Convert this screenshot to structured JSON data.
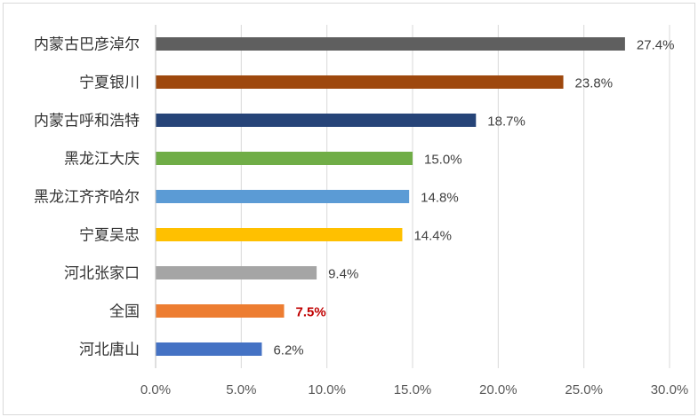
{
  "chart_data": {
    "type": "bar",
    "orientation": "horizontal",
    "categories": [
      "内蒙古巴彦淖尔",
      "宁夏银川",
      "内蒙古呼和浩特",
      "黑龙江大庆",
      "黑龙江齐齐哈尔",
      "宁夏吴忠",
      "河北张家口",
      "全国",
      "河北唐山"
    ],
    "values": [
      27.4,
      23.8,
      18.7,
      15.0,
      14.8,
      14.4,
      9.4,
      7.5,
      6.2
    ],
    "value_labels": [
      "27.4%",
      "23.8%",
      "18.7%",
      "15.0%",
      "14.8%",
      "14.4%",
      "9.4%",
      "7.5%",
      "6.2%"
    ],
    "colors": [
      "#5f5f5f",
      "#9e480e",
      "#264478",
      "#70ad47",
      "#5b9bd5",
      "#ffc000",
      "#a5a5a5",
      "#ed7d31",
      "#4472c4"
    ],
    "highlight_index": 7,
    "highlight_label_color": "#c00000",
    "x_ticks": [
      0,
      5,
      10,
      15,
      20,
      25,
      30
    ],
    "x_tick_labels": [
      "0.0%",
      "5.0%",
      "10.0%",
      "15.0%",
      "20.0%",
      "25.0%",
      "30.0%"
    ],
    "xlim": [
      0,
      30
    ],
    "grid": true,
    "title": "",
    "xlabel": "",
    "ylabel": ""
  }
}
